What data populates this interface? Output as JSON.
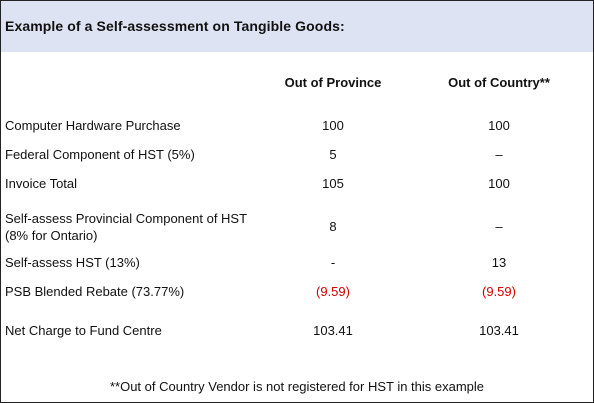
{
  "title": "Example of a Self-assessment on Tangible Goods:",
  "columns": [
    "Out of Province",
    "Out of Country**"
  ],
  "rows": [
    {
      "label": "Computer Hardware Purchase",
      "values": [
        "100",
        "100"
      ]
    },
    {
      "label": "Federal Component of HST (5%)",
      "values": [
        "5",
        "–"
      ]
    },
    {
      "label": "Invoice Total",
      "values": [
        "105",
        "100"
      ]
    },
    {
      "label": "Self-assess Provincial Component of HST (8% for Ontario)",
      "values": [
        "8",
        "–"
      ]
    },
    {
      "label": "Self-assess HST (13%)",
      "values": [
        "-",
        "13"
      ]
    },
    {
      "label": "PSB Blended Rebate (73.77%)",
      "values": [
        "(9.59)",
        "(9.59)"
      ]
    },
    {
      "label": "Net Charge to Fund Centre",
      "values": [
        "103.41",
        "103.41"
      ]
    }
  ],
  "footnote": "**Out of Country Vendor is not registered for HST in this example",
  "colors": {
    "header_background": "#dde3f2",
    "negative_value": "#d40000"
  }
}
